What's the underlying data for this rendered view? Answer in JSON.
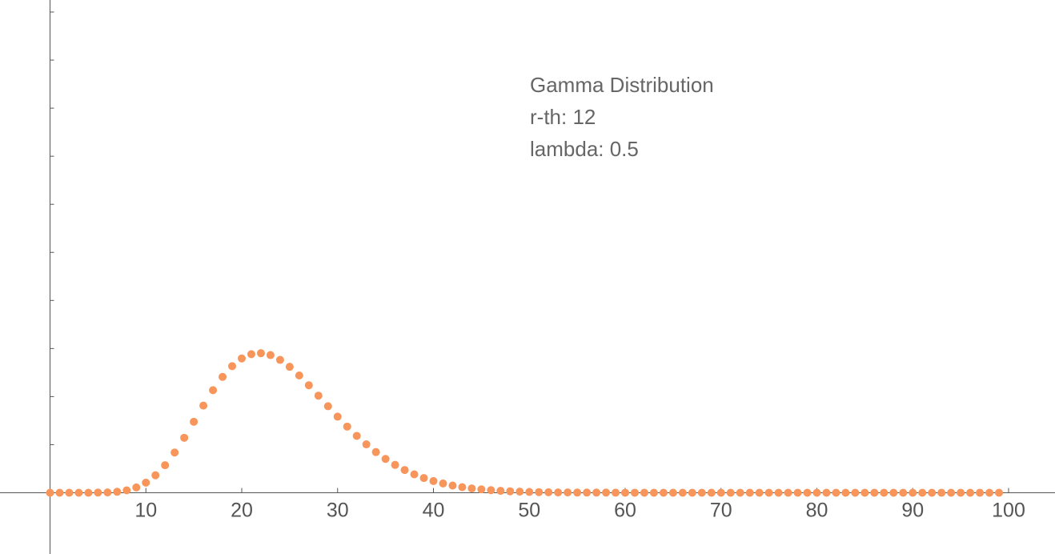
{
  "chart_data": {
    "type": "scatter",
    "title": "",
    "xlabel": "",
    "ylabel": "",
    "xlim": [
      -0.2,
      101
    ],
    "ylim": [
      0,
      0.3
    ],
    "x_ticks": [
      10,
      20,
      30,
      40,
      50,
      60,
      70,
      80,
      90,
      100
    ],
    "x_tick_labels": [
      "10",
      "20",
      "30",
      "40",
      "50",
      "60",
      "70",
      "80",
      "90",
      "100"
    ],
    "y_ticks": [
      0.03,
      0.06,
      0.09,
      0.12,
      0.15,
      0.18,
      0.21,
      0.24,
      0.27,
      0.3
    ],
    "grid": false,
    "marker_color": "#f7955a",
    "annotation": [
      "Gamma Distribution",
      "r-th: 12",
      "lambda: 0.5"
    ],
    "distribution": {
      "r": 12,
      "lambda": 0.5
    },
    "series": [
      {
        "x": [
          0,
          1,
          2,
          3,
          4,
          5,
          6,
          7,
          8,
          9,
          10,
          11,
          12,
          13,
          14,
          15,
          16,
          17,
          18,
          19,
          20,
          21,
          22,
          23,
          24,
          25,
          26,
          27,
          28,
          29,
          30,
          31,
          32,
          33,
          34,
          35,
          36,
          37,
          38,
          39,
          40,
          41,
          42,
          43,
          44,
          45,
          46,
          47,
          48,
          49,
          50,
          51,
          52,
          53,
          54,
          55,
          56,
          57,
          58,
          59,
          60,
          61,
          62,
          63,
          64,
          65,
          66,
          67,
          68,
          69,
          70,
          71,
          72,
          73,
          74,
          75,
          76,
          77,
          78,
          79,
          80,
          81,
          82,
          83,
          84,
          85,
          86,
          87,
          88,
          89,
          90,
          91,
          92,
          93,
          94,
          95,
          96,
          97,
          98,
          99
        ],
        "y": [
          0,
          0,
          0,
          0,
          1e-05,
          0.0001,
          0.0002,
          0.0006,
          0.0015,
          0.0033,
          0.0063,
          0.0109,
          0.0172,
          0.0251,
          0.0343,
          0.0443,
          0.0544,
          0.064,
          0.0723,
          0.079,
          0.0838,
          0.0865,
          0.0871,
          0.0859,
          0.0829,
          0.0786,
          0.0732,
          0.0671,
          0.0606,
          0.054,
          0.0475,
          0.0413,
          0.0355,
          0.0302,
          0.0254,
          0.0211,
          0.0174,
          0.0142,
          0.0115,
          0.0092,
          0.0073,
          0.0058,
          0.0045,
          0.0035,
          0.0027,
          0.0021,
          0.0016,
          0.0012,
          0.0009,
          0.0007,
          0.0005,
          0.0004,
          0.0003,
          0.0002,
          0.0002,
          0.0001,
          0.0001,
          0.0001,
          0.0001,
          4e-05,
          3e-05,
          2e-05,
          2e-05,
          1e-05,
          1e-05,
          1e-05,
          1e-05,
          0,
          0,
          0,
          0,
          0,
          0,
          0,
          0,
          0,
          0,
          0,
          0,
          0,
          0,
          0,
          0,
          0,
          0,
          0,
          0,
          0,
          0,
          0,
          0,
          0,
          0,
          0,
          0,
          0,
          0,
          0,
          0,
          0
        ]
      }
    ]
  }
}
